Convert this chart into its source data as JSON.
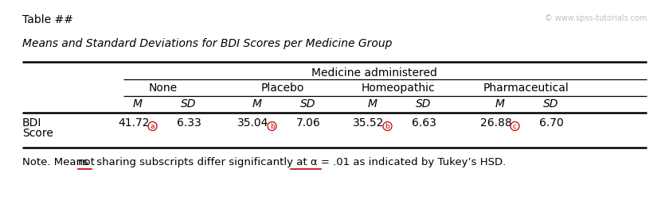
{
  "title_label": "Table ##",
  "watermark": "© www.spss-tutorials.com",
  "subtitle": "Means and Standard Deviations for BDI Scores per Medicine Group",
  "header_group": "Medicine administered",
  "columns": [
    "None",
    "Placebo",
    "Homeopathic",
    "Pharmaceutical"
  ],
  "subheaders": [
    "M",
    "SD",
    "M",
    "SD",
    "M",
    "SD",
    "M",
    "SD"
  ],
  "row_label_line1": "BDI",
  "row_label_line2": "Score",
  "values": [
    "41.72",
    "6.33",
    "35.04",
    "7.06",
    "35.52",
    "6.63",
    "26.88",
    "6.70"
  ],
  "subscripts": [
    "a",
    "b",
    "b",
    "c"
  ],
  "subscript_col_indices": [
    0,
    2,
    4,
    6
  ],
  "bg_color": "#ffffff",
  "text_color": "#000000",
  "circle_color": "#cc0000",
  "underline_color": "#cc0000",
  "fig_width": 8.4,
  "fig_height": 2.76,
  "dpi": 100
}
